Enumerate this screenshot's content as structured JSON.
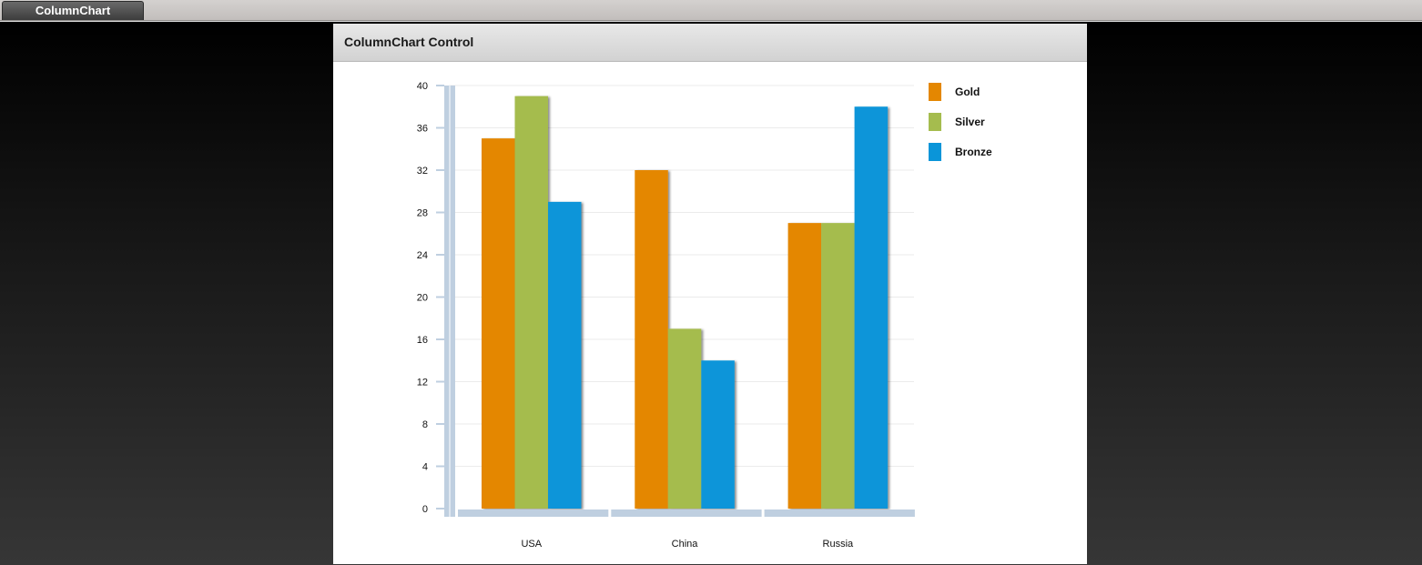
{
  "tabs": [
    {
      "label": "ColumnChart"
    }
  ],
  "panel": {
    "title": "ColumnChart Control"
  },
  "chart_data": {
    "type": "bar",
    "categories": [
      "USA",
      "China",
      "Russia"
    ],
    "series": [
      {
        "name": "Gold",
        "color": "#e48701",
        "values": [
          35,
          32,
          27
        ]
      },
      {
        "name": "Silver",
        "color": "#a5bc4e",
        "values": [
          39,
          17,
          27
        ]
      },
      {
        "name": "Bronze",
        "color": "#0a95d9",
        "values": [
          29,
          14,
          38
        ]
      }
    ],
    "ylim": [
      0,
      40
    ],
    "yticks": [
      0,
      4,
      8,
      12,
      16,
      20,
      24,
      28,
      32,
      36,
      40
    ],
    "grid": true,
    "legend": "right",
    "axis_color": "#bfcfe0"
  }
}
